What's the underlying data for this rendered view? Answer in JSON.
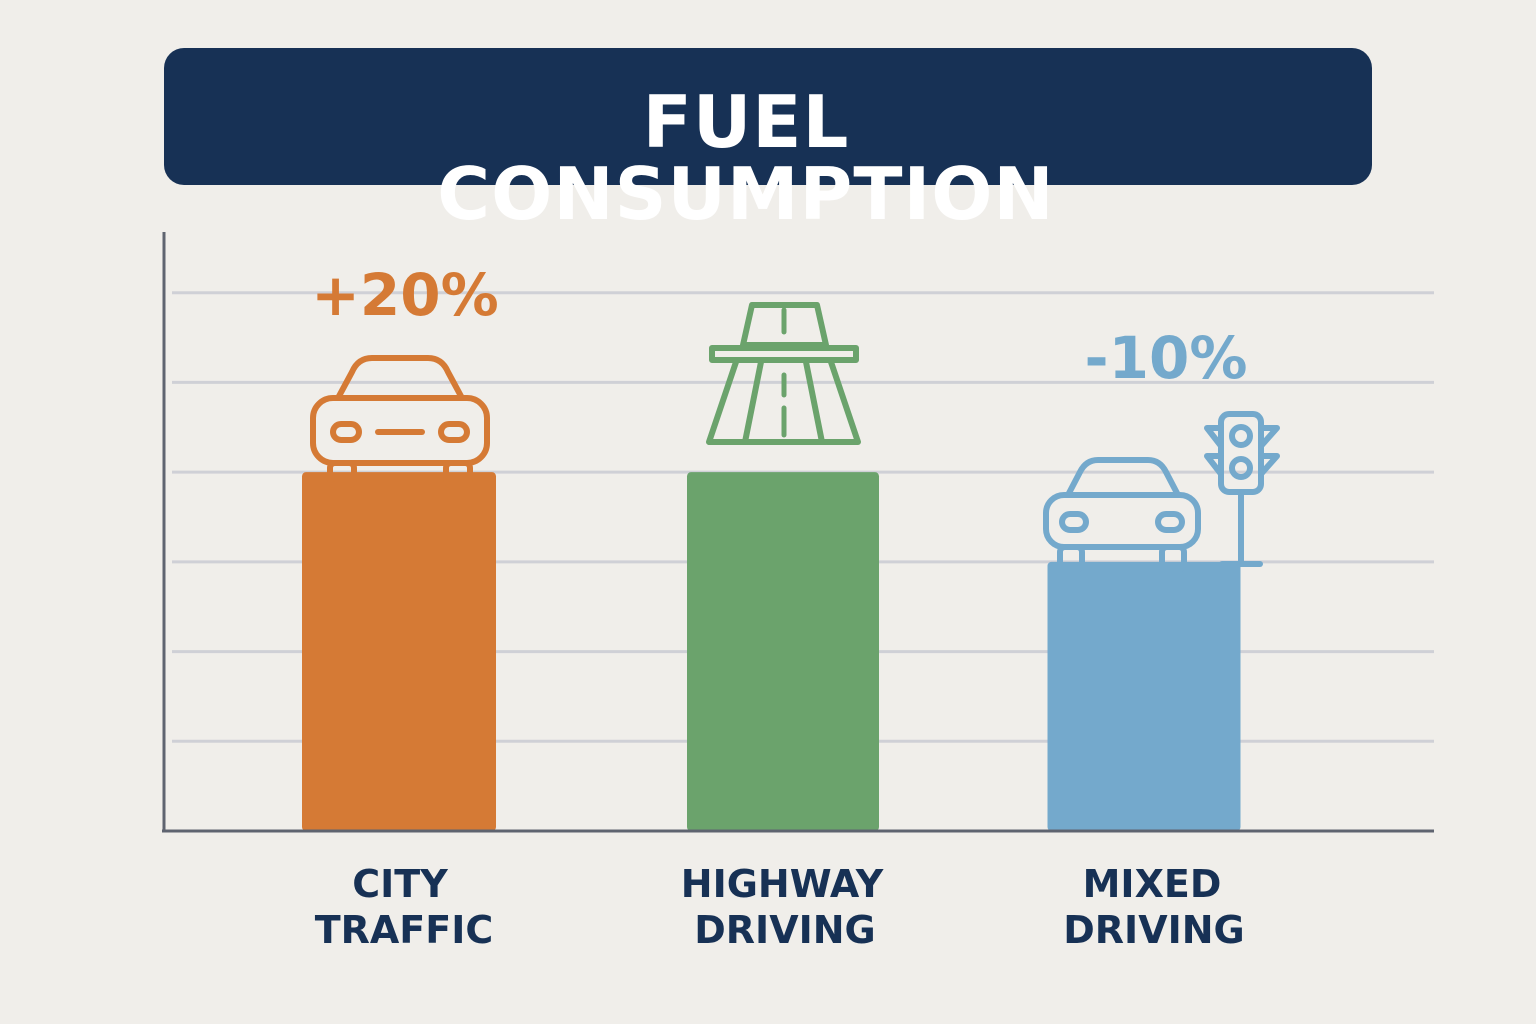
{
  "title": "FUEL CONSUMPTION",
  "colors": {
    "banner": "#173155",
    "background": "#f0eeea",
    "city": "#d57a35",
    "highway": "#6ba36c",
    "mixed": "#74a9cc",
    "label": "#173155",
    "grid": "#cfd0d6",
    "axis": "#5f6470"
  },
  "chart_data": {
    "type": "bar",
    "categories": [
      [
        "CITY",
        "TRAFFIC"
      ],
      [
        "HIGHWAY",
        "DRIVING"
      ],
      [
        "MIXED",
        "DRIVING"
      ]
    ],
    "values": [
      4,
      4,
      3
    ],
    "ylim": [
      0,
      7
    ],
    "grid": true,
    "annotations": [
      {
        "category_index": 0,
        "text": "+20%"
      },
      {
        "category_index": 2,
        "text": "-10%"
      }
    ],
    "icons": [
      "car-icon",
      "highway-icon",
      "car-icon",
      "traffic-light-icon"
    ]
  }
}
